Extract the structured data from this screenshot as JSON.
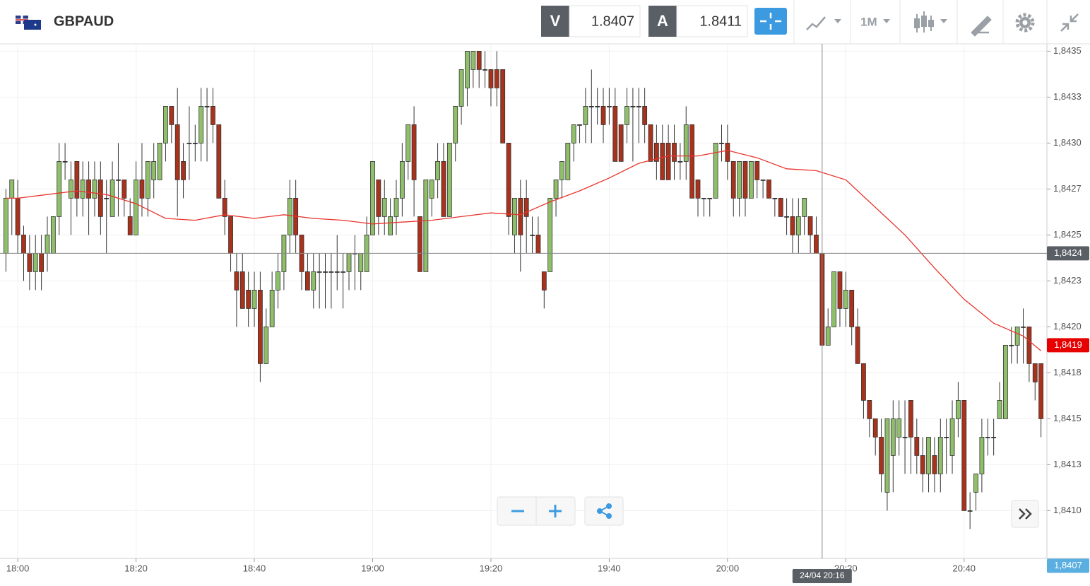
{
  "header": {
    "symbol": "GBPAUD",
    "bid_label": "V",
    "bid": "1.8407",
    "ask_label": "A",
    "ask": "1.8411",
    "timeframe": "1M"
  },
  "chart_data": {
    "type": "candlestick",
    "up_color": "#8fbf6a",
    "down_color": "#a8321c",
    "xlim": [
      "17:57",
      "20:54"
    ],
    "ylim": [
      1.84074,
      1.84354
    ],
    "xticks": [
      "18:00",
      "18:20",
      "18:40",
      "19:00",
      "19:20",
      "19:40",
      "20:00",
      "20:20",
      "20:40"
    ],
    "yticks": [
      {
        "value": 1.8435,
        "label": "1,8435"
      },
      {
        "value": 1.84325,
        "label": "1,8433"
      },
      {
        "value": 1.843,
        "label": "1,8430"
      },
      {
        "value": 1.84275,
        "label": "1,8427"
      },
      {
        "value": 1.8425,
        "label": "1,8425"
      },
      {
        "value": 1.84225,
        "label": "1,8423"
      },
      {
        "value": 1.842,
        "label": "1,8420"
      },
      {
        "value": 1.84175,
        "label": "1,8418"
      },
      {
        "value": 1.8415,
        "label": "1,8415"
      },
      {
        "value": 1.84125,
        "label": "1,8413"
      },
      {
        "value": 1.841,
        "label": "1,8410"
      }
    ],
    "grid": true,
    "x": [
      "17:58",
      "17:59",
      "18:00",
      "18:01",
      "18:02",
      "18:03",
      "18:04",
      "18:05",
      "18:06",
      "18:07",
      "18:08",
      "18:09",
      "18:10",
      "18:11",
      "18:12",
      "18:13",
      "18:14",
      "18:15",
      "18:16",
      "18:17",
      "18:18",
      "18:19",
      "18:20",
      "18:21",
      "18:22",
      "18:23",
      "18:24",
      "18:25",
      "18:26",
      "18:27",
      "18:28",
      "18:29",
      "18:30",
      "18:31",
      "18:32",
      "18:33",
      "18:34",
      "18:35",
      "18:36",
      "18:37",
      "18:38",
      "18:39",
      "18:40",
      "18:41",
      "18:42",
      "18:43",
      "18:44",
      "18:45",
      "18:46",
      "18:47",
      "18:48",
      "18:49",
      "18:50",
      "18:51",
      "18:52",
      "18:53",
      "18:54",
      "18:55",
      "18:56",
      "18:57",
      "18:58",
      "18:59",
      "19:00",
      "19:01",
      "19:02",
      "19:03",
      "19:04",
      "19:05",
      "19:06",
      "19:07",
      "19:08",
      "19:09",
      "19:10",
      "19:11",
      "19:12",
      "19:13",
      "19:14",
      "19:15",
      "19:16",
      "19:17",
      "19:18",
      "19:19",
      "19:20",
      "19:21",
      "19:22",
      "19:23",
      "19:24",
      "19:25",
      "19:26",
      "19:27",
      "19:28",
      "19:29",
      "19:30",
      "19:31",
      "19:32",
      "19:33",
      "19:34",
      "19:35",
      "19:36",
      "19:37",
      "19:38",
      "19:39",
      "19:40",
      "19:41",
      "19:42",
      "19:43",
      "19:44",
      "19:45",
      "19:46",
      "19:47",
      "19:48",
      "19:49",
      "19:50",
      "19:51",
      "19:52",
      "19:53",
      "19:54",
      "19:55",
      "19:56",
      "19:57",
      "19:58",
      "19:59",
      "20:00",
      "20:01",
      "20:02",
      "20:03",
      "20:04",
      "20:05",
      "20:06",
      "20:07",
      "20:08",
      "20:09",
      "20:10",
      "20:11",
      "20:12",
      "20:13",
      "20:14",
      "20:15",
      "20:16",
      "20:17",
      "20:18",
      "20:19",
      "20:20",
      "20:21",
      "20:22",
      "20:23",
      "20:24",
      "20:25",
      "20:26",
      "20:27",
      "20:28",
      "20:29",
      "20:30",
      "20:31",
      "20:32",
      "20:33",
      "20:34",
      "20:35",
      "20:36",
      "20:37",
      "20:38",
      "20:39",
      "20:40",
      "20:41",
      "20:42",
      "20:43",
      "20:44",
      "20:45",
      "20:46",
      "20:47",
      "20:48",
      "20:49",
      "20:50",
      "20:51",
      "20:52",
      "20:53"
    ],
    "ohlc": [
      [
        1.8424,
        1.84275,
        1.8423,
        1.8427
      ],
      [
        1.8427,
        1.8428,
        1.8425,
        1.8428
      ],
      [
        1.8427,
        1.8428,
        1.8424,
        1.8425
      ],
      [
        1.8425,
        1.84255,
        1.84225,
        1.8424
      ],
      [
        1.8424,
        1.8425,
        1.8422,
        1.8423
      ],
      [
        1.8423,
        1.8425,
        1.8422,
        1.8424
      ],
      [
        1.8424,
        1.8425,
        1.8422,
        1.8423
      ],
      [
        1.8424,
        1.8426,
        1.8423,
        1.8425
      ],
      [
        1.8424,
        1.8426,
        1.8424,
        1.8426
      ],
      [
        1.8426,
        1.843,
        1.8425,
        1.8429
      ],
      [
        1.8429,
        1.843,
        1.8428,
        1.8429
      ],
      [
        1.8427,
        1.8429,
        1.8425,
        1.8428
      ],
      [
        1.8429,
        1.8429,
        1.8426,
        1.8427
      ],
      [
        1.8427,
        1.8429,
        1.8426,
        1.8428
      ],
      [
        1.8428,
        1.8429,
        1.8425,
        1.8427
      ],
      [
        1.8427,
        1.8429,
        1.8426,
        1.8428
      ],
      [
        1.8428,
        1.8429,
        1.8425,
        1.8426
      ],
      [
        1.8427,
        1.8428,
        1.8424,
        1.8427
      ],
      [
        1.8426,
        1.8429,
        1.8426,
        1.8428
      ],
      [
        1.8428,
        1.843,
        1.8426,
        1.8428
      ],
      [
        1.8428,
        1.8428,
        1.8426,
        1.8427
      ],
      [
        1.8426,
        1.8427,
        1.8425,
        1.8425
      ],
      [
        1.8425,
        1.8429,
        1.8425,
        1.8428
      ],
      [
        1.8428,
        1.843,
        1.8426,
        1.8427
      ],
      [
        1.8427,
        1.8429,
        1.8426,
        1.8429
      ],
      [
        1.8428,
        1.843,
        1.8427,
        1.8429
      ],
      [
        1.8428,
        1.843,
        1.8428,
        1.843
      ],
      [
        1.843,
        1.8432,
        1.8429,
        1.8432
      ],
      [
        1.8432,
        1.8432,
        1.843,
        1.8431
      ],
      [
        1.8431,
        1.8433,
        1.8426,
        1.8428
      ],
      [
        1.8429,
        1.843,
        1.8427,
        1.8428
      ],
      [
        1.843,
        1.8432,
        1.8428,
        1.843
      ],
      [
        1.843,
        1.8431,
        1.8429,
        1.843
      ],
      [
        1.843,
        1.8433,
        1.8429,
        1.8432
      ],
      [
        1.8432,
        1.8433,
        1.8429,
        1.8432
      ],
      [
        1.8432,
        1.8433,
        1.843,
        1.8431
      ],
      [
        1.8431,
        1.8431,
        1.8427,
        1.8427
      ],
      [
        1.8427,
        1.8428,
        1.8425,
        1.8426
      ],
      [
        1.8426,
        1.8426,
        1.8423,
        1.8424
      ],
      [
        1.8423,
        1.8424,
        1.842,
        1.8422
      ],
      [
        1.8423,
        1.8424,
        1.8421,
        1.8421
      ],
      [
        1.8422,
        1.8423,
        1.842,
        1.8421
      ],
      [
        1.8421,
        1.8423,
        1.842,
        1.8422
      ],
      [
        1.8422,
        1.8423,
        1.8417,
        1.8418
      ],
      [
        1.8418,
        1.8421,
        1.8418,
        1.842
      ],
      [
        1.842,
        1.8423,
        1.842,
        1.8422
      ],
      [
        1.8422,
        1.8424,
        1.8421,
        1.8423
      ],
      [
        1.8423,
        1.8425,
        1.8422,
        1.8425
      ],
      [
        1.8425,
        1.8428,
        1.8424,
        1.8427
      ],
      [
        1.8427,
        1.8428,
        1.8424,
        1.8425
      ],
      [
        1.8425,
        1.8425,
        1.8422,
        1.8423
      ],
      [
        1.8423,
        1.8424,
        1.8422,
        1.8422
      ],
      [
        1.8422,
        1.8424,
        1.8421,
        1.8423
      ],
      [
        1.8423,
        1.8424,
        1.8421,
        1.8423
      ],
      [
        1.8423,
        1.8424,
        1.8421,
        1.8423
      ],
      [
        1.8423,
        1.8424,
        1.8421,
        1.8423
      ],
      [
        1.8423,
        1.8425,
        1.8422,
        1.8423
      ],
      [
        1.8423,
        1.8424,
        1.8421,
        1.8423
      ],
      [
        1.8423,
        1.8424,
        1.8422,
        1.8424
      ],
      [
        1.8424,
        1.8425,
        1.8422,
        1.8424
      ],
      [
        1.8423,
        1.8424,
        1.8422,
        1.8424
      ],
      [
        1.8423,
        1.8426,
        1.8423,
        1.8425
      ],
      [
        1.8425,
        1.8429,
        1.8425,
        1.8429
      ],
      [
        1.8428,
        1.8428,
        1.8425,
        1.8426
      ],
      [
        1.8426,
        1.8428,
        1.8425,
        1.8427
      ],
      [
        1.8425,
        1.8427,
        1.8425,
        1.8426
      ],
      [
        1.8426,
        1.8428,
        1.8425,
        1.8427
      ],
      [
        1.8427,
        1.843,
        1.8426,
        1.8429
      ],
      [
        1.8429,
        1.8431,
        1.8428,
        1.8431
      ],
      [
        1.8431,
        1.8432,
        1.8426,
        1.8428
      ],
      [
        1.8426,
        1.8426,
        1.8423,
        1.8423
      ],
      [
        1.8423,
        1.8428,
        1.8423,
        1.8428
      ],
      [
        1.8427,
        1.8428,
        1.8426,
        1.8428
      ],
      [
        1.8428,
        1.843,
        1.8427,
        1.8429
      ],
      [
        1.8429,
        1.843,
        1.8426,
        1.8426
      ],
      [
        1.8426,
        1.843,
        1.8426,
        1.843
      ],
      [
        1.843,
        1.8432,
        1.8429,
        1.8432
      ],
      [
        1.8432,
        1.8434,
        1.8431,
        1.8434
      ],
      [
        1.8433,
        1.8435,
        1.8432,
        1.8435
      ],
      [
        1.8434,
        1.8435,
        1.8433,
        1.8435
      ],
      [
        1.8435,
        1.8435,
        1.8433,
        1.8434
      ],
      [
        1.8434,
        1.8435,
        1.8433,
        1.8434
      ],
      [
        1.8434,
        1.8434,
        1.8432,
        1.8433
      ],
      [
        1.8434,
        1.8435,
        1.8432,
        1.8433
      ],
      [
        1.8434,
        1.8434,
        1.843,
        1.843
      ],
      [
        1.843,
        1.843,
        1.8425,
        1.8426
      ],
      [
        1.8425,
        1.8427,
        1.8424,
        1.8427
      ],
      [
        1.8427,
        1.8428,
        1.8423,
        1.8425
      ],
      [
        1.8427,
        1.8428,
        1.8424,
        1.8426
      ],
      [
        1.8425,
        1.8426,
        1.8424,
        1.8425
      ],
      [
        1.8425,
        1.8426,
        1.8424,
        1.8424
      ],
      [
        1.8423,
        1.8423,
        1.8421,
        1.8422
      ],
      [
        1.8423,
        1.8427,
        1.8423,
        1.8427
      ],
      [
        1.8427,
        1.8428,
        1.8426,
        1.8428
      ],
      [
        1.8428,
        1.8429,
        1.8427,
        1.8429
      ],
      [
        1.8428,
        1.843,
        1.8428,
        1.843
      ],
      [
        1.843,
        1.8431,
        1.8429,
        1.8431
      ],
      [
        1.8431,
        1.8431,
        1.843,
        1.8431
      ],
      [
        1.8431,
        1.8433,
        1.843,
        1.8432
      ],
      [
        1.8432,
        1.8434,
        1.843,
        1.8432
      ],
      [
        1.8432,
        1.8433,
        1.8431,
        1.8432
      ],
      [
        1.8432,
        1.8433,
        1.843,
        1.8431
      ],
      [
        1.8432,
        1.8433,
        1.8431,
        1.8432
      ],
      [
        1.8432,
        1.8433,
        1.8429,
        1.8429
      ],
      [
        1.8431,
        1.8431,
        1.8429,
        1.8429
      ],
      [
        1.8431,
        1.8433,
        1.843,
        1.8432
      ],
      [
        1.8432,
        1.8433,
        1.8429,
        1.8432
      ],
      [
        1.8432,
        1.8433,
        1.843,
        1.8432
      ],
      [
        1.8432,
        1.8433,
        1.843,
        1.8431
      ],
      [
        1.8431,
        1.8431,
        1.8429,
        1.8429
      ],
      [
        1.843,
        1.8431,
        1.8428,
        1.8429
      ],
      [
        1.843,
        1.8431,
        1.8428,
        1.8428
      ],
      [
        1.843,
        1.8431,
        1.8428,
        1.8428
      ],
      [
        1.843,
        1.8431,
        1.8428,
        1.8429
      ],
      [
        1.8429,
        1.843,
        1.8428,
        1.8429
      ],
      [
        1.8429,
        1.8432,
        1.8428,
        1.8431
      ],
      [
        1.8431,
        1.8431,
        1.8427,
        1.8427
      ],
      [
        1.8428,
        1.8428,
        1.8426,
        1.8427
      ],
      [
        1.8427,
        1.8427,
        1.8426,
        1.8427
      ],
      [
        1.8427,
        1.8427,
        1.8426,
        1.8427
      ],
      [
        1.8427,
        1.843,
        1.8427,
        1.843
      ],
      [
        1.843,
        1.8431,
        1.8429,
        1.843
      ],
      [
        1.843,
        1.8431,
        1.8428,
        1.8429
      ],
      [
        1.8429,
        1.8429,
        1.8426,
        1.8427
      ],
      [
        1.8427,
        1.8429,
        1.8426,
        1.8429
      ],
      [
        1.8429,
        1.8429,
        1.8426,
        1.8427
      ],
      [
        1.8427,
        1.8429,
        1.8427,
        1.8429
      ],
      [
        1.8429,
        1.8429,
        1.8427,
        1.8428
      ],
      [
        1.8428,
        1.8428,
        1.8427,
        1.8428
      ],
      [
        1.8428,
        1.8428,
        1.8427,
        1.8427
      ],
      [
        1.8427,
        1.8427,
        1.8426,
        1.8427
      ],
      [
        1.8427,
        1.8427,
        1.8426,
        1.8426
      ],
      [
        1.8426,
        1.8427,
        1.8425,
        1.8426
      ],
      [
        1.8426,
        1.8427,
        1.8424,
        1.8425
      ],
      [
        1.8425,
        1.8427,
        1.8424,
        1.8426
      ],
      [
        1.8426,
        1.8427,
        1.8425,
        1.8427
      ],
      [
        1.8426,
        1.8426,
        1.8424,
        1.8425
      ],
      [
        1.8425,
        1.8426,
        1.8424,
        1.8424
      ],
      [
        1.8424,
        1.8424,
        1.8419,
        1.8419
      ],
      [
        1.8419,
        1.8421,
        1.8419,
        1.842
      ],
      [
        1.842,
        1.8423,
        1.842,
        1.8423
      ],
      [
        1.8423,
        1.8423,
        1.842,
        1.8421
      ],
      [
        1.8421,
        1.8423,
        1.842,
        1.8422
      ],
      [
        1.8422,
        1.8422,
        1.8419,
        1.842
      ],
      [
        1.842,
        1.8421,
        1.8418,
        1.8418
      ],
      [
        1.8418,
        1.8418,
        1.8415,
        1.8416
      ],
      [
        1.8416,
        1.8416,
        1.8414,
        1.8415
      ],
      [
        1.8415,
        1.8415,
        1.8413,
        1.8414
      ],
      [
        1.8414,
        1.8415,
        1.8411,
        1.8412
      ],
      [
        1.8411,
        1.8415,
        1.841,
        1.8415
      ],
      [
        1.8413,
        1.8416,
        1.8411,
        1.8415
      ],
      [
        1.8414,
        1.8416,
        1.8413,
        1.8415
      ],
      [
        1.8414,
        1.8416,
        1.8412,
        1.8414
      ],
      [
        1.8416,
        1.8416,
        1.8412,
        1.8414
      ],
      [
        1.8414,
        1.8415,
        1.8412,
        1.8413
      ],
      [
        1.8413,
        1.8414,
        1.8411,
        1.8412
      ],
      [
        1.8412,
        1.8414,
        1.8411,
        1.8414
      ],
      [
        1.8413,
        1.8414,
        1.8411,
        1.8412
      ],
      [
        1.8412,
        1.8415,
        1.8411,
        1.8414
      ],
      [
        1.8414,
        1.8415,
        1.8412,
        1.8414
      ],
      [
        1.8413,
        1.8416,
        1.8412,
        1.8415
      ],
      [
        1.8415,
        1.8417,
        1.8414,
        1.8416
      ],
      [
        1.8416,
        1.8416,
        1.841,
        1.841
      ],
      [
        1.841,
        1.8411,
        1.8409,
        1.841
      ],
      [
        1.8411,
        1.8412,
        1.841,
        1.8412
      ],
      [
        1.8412,
        1.8415,
        1.8411,
        1.8414
      ],
      [
        1.8414,
        1.8415,
        1.8413,
        1.8414
      ],
      [
        1.8414,
        1.8415,
        1.8413,
        1.8414
      ],
      [
        1.8415,
        1.8417,
        1.8415,
        1.8416
      ],
      [
        1.8415,
        1.8419,
        1.8415,
        1.8419
      ],
      [
        1.8419,
        1.842,
        1.8418,
        1.8419
      ],
      [
        1.8419,
        1.842,
        1.8418,
        1.842
      ],
      [
        1.842,
        1.8421,
        1.8418,
        1.842
      ],
      [
        1.842,
        1.842,
        1.8417,
        1.8418
      ],
      [
        1.8418,
        1.8418,
        1.8416,
        1.8417
      ],
      [
        1.8418,
        1.8418,
        1.8414,
        1.8415
      ]
    ],
    "moving_average": {
      "color": "#e8342c",
      "x": [
        "17:58",
        "18:00",
        "18:05",
        "18:10",
        "18:15",
        "18:20",
        "18:25",
        "18:30",
        "18:35",
        "18:40",
        "18:45",
        "18:50",
        "18:55",
        "19:00",
        "19:05",
        "19:10",
        "19:15",
        "19:20",
        "19:25",
        "19:30",
        "19:35",
        "19:40",
        "19:45",
        "19:50",
        "19:55",
        "20:00",
        "20:05",
        "20:10",
        "20:15",
        "20:20",
        "20:25",
        "20:30",
        "20:35",
        "20:40",
        "20:45",
        "20:50",
        "20:53"
      ],
      "values": [
        1.8427,
        1.8427,
        1.84272,
        1.84274,
        1.84272,
        1.84267,
        1.84259,
        1.84258,
        1.84261,
        1.84259,
        1.84261,
        1.84259,
        1.84258,
        1.84256,
        1.84257,
        1.84258,
        1.8426,
        1.84262,
        1.84261,
        1.84268,
        1.84274,
        1.84281,
        1.84289,
        1.84293,
        1.84293,
        1.84296,
        1.84292,
        1.84286,
        1.84285,
        1.8428,
        1.84265,
        1.8425,
        1.84232,
        1.84215,
        1.84202,
        1.84195,
        1.84187
      ]
    },
    "crosshair": {
      "x": "20:16",
      "label": "24/04 20:16",
      "y": 1.8424,
      "y_label": "1,8424",
      "color": "#5a5f66"
    },
    "price_tags": [
      {
        "value": 1.8419,
        "label": "1,8419",
        "color": "#e60000"
      },
      {
        "value": 1.8407,
        "label": "1,8407",
        "color": "#5aaee0"
      }
    ]
  }
}
